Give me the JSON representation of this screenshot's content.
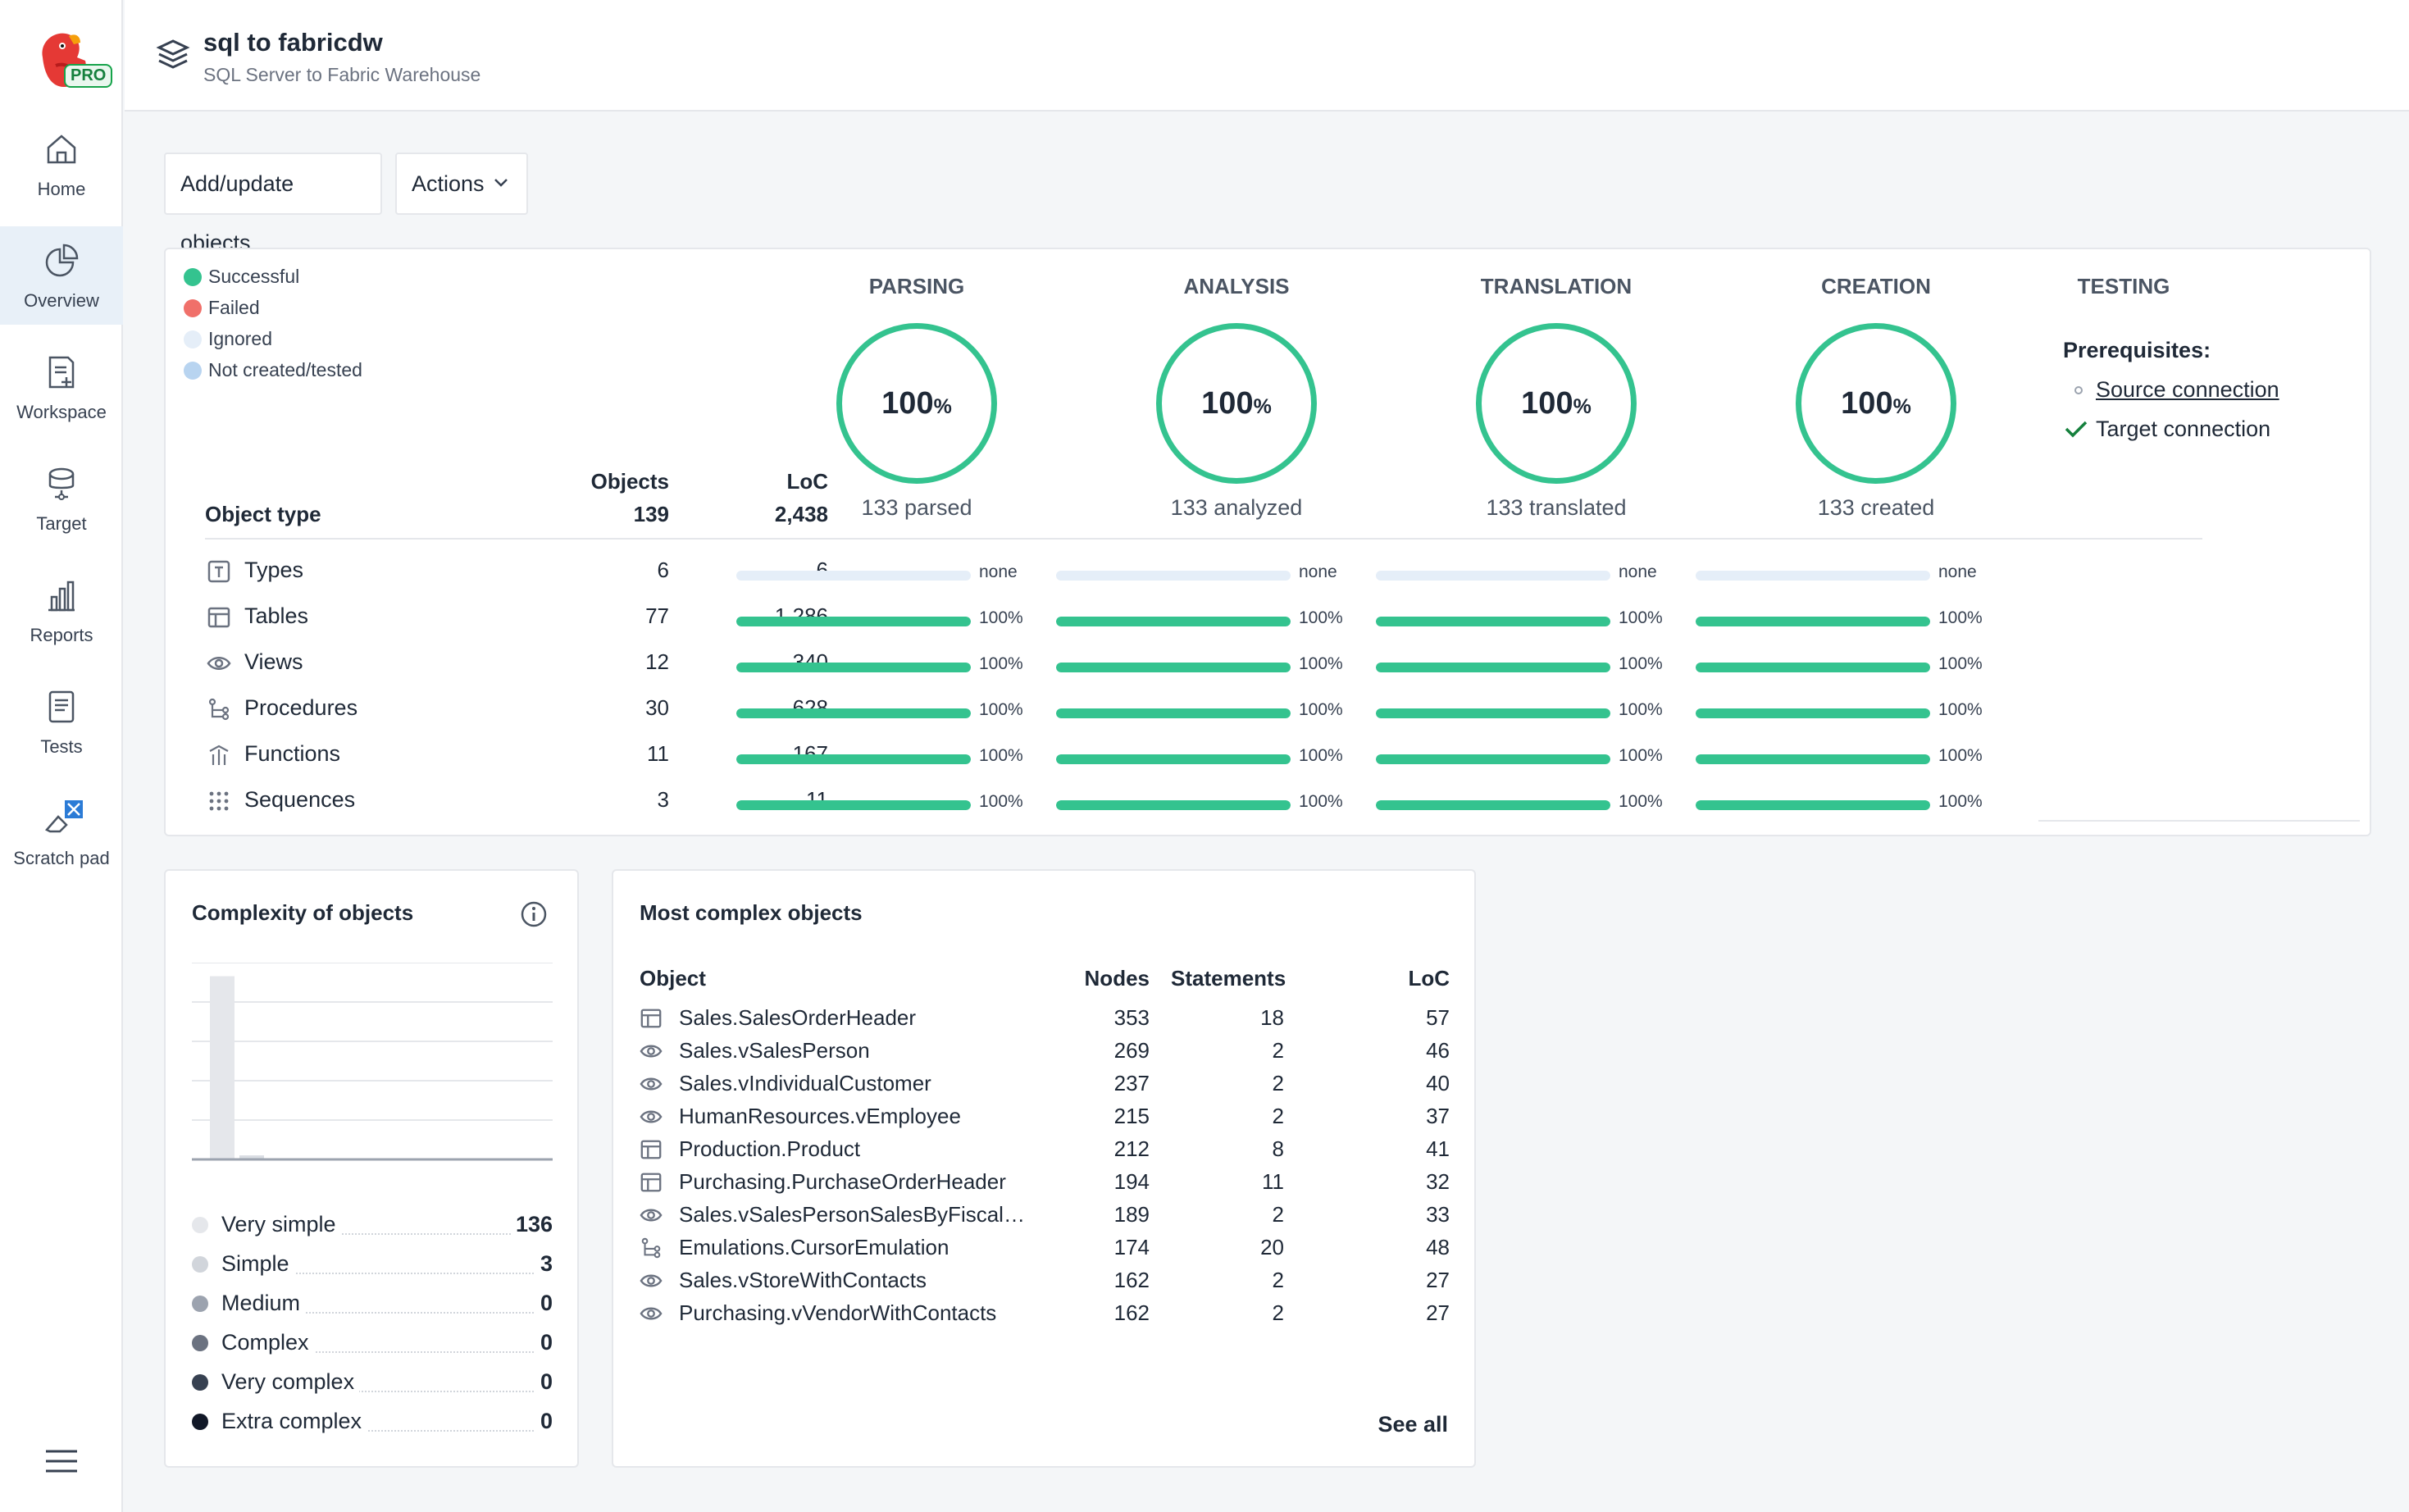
{
  "colors": {
    "success": "#34c38f",
    "failed": "#f0706a",
    "ignored": "#e5eef8",
    "not_created": "#b8d4f0",
    "brand": "#e53935"
  },
  "sidebar": {
    "badge": "PRO",
    "items": [
      {
        "label": "Home",
        "icon": "home-icon"
      },
      {
        "label": "Overview",
        "icon": "pie-chart-icon",
        "active": true
      },
      {
        "label": "Workspace",
        "icon": "document-plus-icon"
      },
      {
        "label": "Target",
        "icon": "database-icon"
      },
      {
        "label": "Reports",
        "icon": "bar-chart-icon"
      },
      {
        "label": "Tests",
        "icon": "clipboard-icon"
      },
      {
        "label": "Scratch pad",
        "icon": "eraser-icon"
      }
    ]
  },
  "header": {
    "title": "sql to fabricdw",
    "subtitle": "SQL Server to Fabric Warehouse"
  },
  "toolbar": {
    "add_label": "Add/update objects",
    "actions_label": "Actions"
  },
  "legend": [
    {
      "label": "Successful",
      "color": "#34c38f"
    },
    {
      "label": "Failed",
      "color": "#f0706a"
    },
    {
      "label": "Ignored",
      "color": "#e5eef8"
    },
    {
      "label": "Not created/tested",
      "color": "#b8d4f0"
    }
  ],
  "table": {
    "object_type_header": "Object type",
    "objects_header": "Objects",
    "objects_total": "139",
    "loc_header": "LoC",
    "loc_total": "2,438",
    "rows": [
      {
        "name": "Types",
        "icon": "type-icon",
        "objects": "6",
        "loc": "6",
        "stages": [
          {
            "value": 0,
            "label": "none"
          },
          {
            "value": 0,
            "label": "none"
          },
          {
            "value": 0,
            "label": "none"
          },
          {
            "value": 0,
            "label": "none"
          }
        ]
      },
      {
        "name": "Tables",
        "icon": "table-icon",
        "objects": "77",
        "loc": "1,286",
        "stages": [
          {
            "value": 100,
            "label": "100%"
          },
          {
            "value": 100,
            "label": "100%"
          },
          {
            "value": 100,
            "label": "100%"
          },
          {
            "value": 100,
            "label": "100%"
          }
        ]
      },
      {
        "name": "Views",
        "icon": "eye-icon",
        "objects": "12",
        "loc": "340",
        "stages": [
          {
            "value": 100,
            "label": "100%"
          },
          {
            "value": 100,
            "label": "100%"
          },
          {
            "value": 100,
            "label": "100%"
          },
          {
            "value": 100,
            "label": "100%"
          }
        ]
      },
      {
        "name": "Procedures",
        "icon": "procedure-icon",
        "objects": "30",
        "loc": "628",
        "stages": [
          {
            "value": 100,
            "label": "100%"
          },
          {
            "value": 100,
            "label": "100%"
          },
          {
            "value": 100,
            "label": "100%"
          },
          {
            "value": 100,
            "label": "100%"
          }
        ]
      },
      {
        "name": "Functions",
        "icon": "function-icon",
        "objects": "11",
        "loc": "167",
        "stages": [
          {
            "value": 100,
            "label": "100%"
          },
          {
            "value": 100,
            "label": "100%"
          },
          {
            "value": 100,
            "label": "100%"
          },
          {
            "value": 100,
            "label": "100%"
          }
        ]
      },
      {
        "name": "Sequences",
        "icon": "sequence-icon",
        "objects": "3",
        "loc": "11",
        "stages": [
          {
            "value": 100,
            "label": "100%"
          },
          {
            "value": 100,
            "label": "100%"
          },
          {
            "value": 100,
            "label": "100%"
          },
          {
            "value": 100,
            "label": "100%"
          }
        ]
      }
    ]
  },
  "stages": [
    {
      "title": "PARSING",
      "percent": "100",
      "unit": "%",
      "summary": "133 parsed"
    },
    {
      "title": "ANALYSIS",
      "percent": "100",
      "unit": "%",
      "summary": "133 analyzed"
    },
    {
      "title": "TRANSLATION",
      "percent": "100",
      "unit": "%",
      "summary": "133 translated"
    },
    {
      "title": "CREATION",
      "percent": "100",
      "unit": "%",
      "summary": "133 created"
    }
  ],
  "testing": {
    "title": "TESTING",
    "prereq_label": "Prerequisites:",
    "items": [
      {
        "label": "Source connection",
        "done": false
      },
      {
        "label": "Target connection",
        "done": true
      }
    ]
  },
  "complexity": {
    "title": "Complexity of objects",
    "items": [
      {
        "label": "Very simple",
        "value": "136",
        "color": "#e5e7eb"
      },
      {
        "label": "Simple",
        "value": "3",
        "color": "#d1d5db"
      },
      {
        "label": "Medium",
        "value": "0",
        "color": "#9ca3af"
      },
      {
        "label": "Complex",
        "value": "0",
        "color": "#6b7280"
      },
      {
        "label": "Very complex",
        "value": "0",
        "color": "#374151"
      },
      {
        "label": "Extra complex",
        "value": "0",
        "color": "#111827"
      }
    ]
  },
  "chart_data": {
    "type": "bar",
    "categories": [
      "Very simple",
      "Simple",
      "Medium",
      "Complex",
      "Very complex",
      "Extra complex"
    ],
    "values": [
      136,
      3,
      0,
      0,
      0,
      0
    ],
    "title": "",
    "xlabel": "",
    "ylabel": "",
    "ylim": [
      0,
      140
    ],
    "grid": true
  },
  "most_complex": {
    "title": "Most complex objects",
    "headers": {
      "object": "Object",
      "nodes": "Nodes",
      "statements": "Statements",
      "loc": "LoC"
    },
    "rows": [
      {
        "icon": "table-icon",
        "name": "Sales.SalesOrderHeader",
        "nodes": "353",
        "statements": "18",
        "loc": "57"
      },
      {
        "icon": "eye-icon",
        "name": "Sales.vSalesPerson",
        "nodes": "269",
        "statements": "2",
        "loc": "46"
      },
      {
        "icon": "eye-icon",
        "name": "Sales.vIndividualCustomer",
        "nodes": "237",
        "statements": "2",
        "loc": "40"
      },
      {
        "icon": "eye-icon",
        "name": "HumanResources.vEmployee",
        "nodes": "215",
        "statements": "2",
        "loc": "37"
      },
      {
        "icon": "table-icon",
        "name": "Production.Product",
        "nodes": "212",
        "statements": "8",
        "loc": "41"
      },
      {
        "icon": "table-icon",
        "name": "Purchasing.PurchaseOrderHeader",
        "nodes": "194",
        "statements": "11",
        "loc": "32"
      },
      {
        "icon": "eye-icon",
        "name": "Sales.vSalesPersonSalesByFiscalY…",
        "nodes": "189",
        "statements": "2",
        "loc": "33"
      },
      {
        "icon": "procedure-icon",
        "name": "Emulations.CursorEmulation",
        "nodes": "174",
        "statements": "20",
        "loc": "48"
      },
      {
        "icon": "eye-icon",
        "name": "Sales.vStoreWithContacts",
        "nodes": "162",
        "statements": "2",
        "loc": "27"
      },
      {
        "icon": "eye-icon",
        "name": "Purchasing.vVendorWithContacts",
        "nodes": "162",
        "statements": "2",
        "loc": "27"
      }
    ],
    "see_all_label": "See all"
  }
}
